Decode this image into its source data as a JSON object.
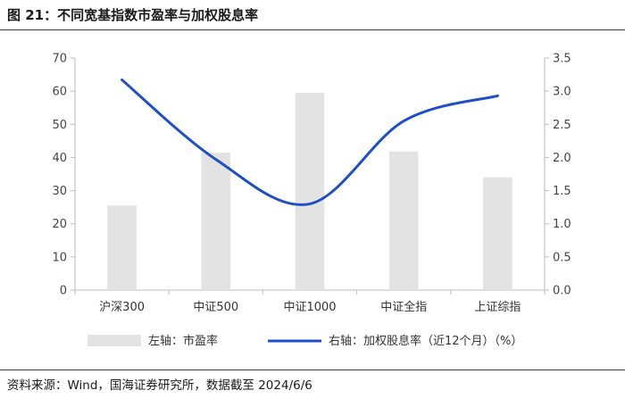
{
  "figure": {
    "title": "图 21：不同宽基指数市盈率与加权股息率",
    "source": "资料来源：Wind，国海证券研究所，数据截至 2024/6/6"
  },
  "chart_data": {
    "type": "bar+line",
    "categories": [
      "沪深300",
      "中证500",
      "中证1000",
      "中证全指",
      "上证综指"
    ],
    "series": [
      {
        "name": "左轴：市盈率",
        "type": "bar",
        "axis": "left",
        "color": "#e3e3e3",
        "values": [
          25.5,
          41.5,
          59.5,
          41.8,
          34.0
        ]
      },
      {
        "name": "右轴：加权股息率（近12个月）（%）",
        "type": "line",
        "axis": "right",
        "color": "#1f4fc6",
        "values": [
          3.17,
          1.97,
          1.3,
          2.55,
          2.93
        ]
      }
    ],
    "y_left": {
      "min": 0,
      "max": 70,
      "step": 10,
      "ticks": [
        "0",
        "10",
        "20",
        "30",
        "40",
        "50",
        "60",
        "70"
      ]
    },
    "y_right": {
      "min": 0,
      "max": 3.5,
      "step": 0.5,
      "ticks": [
        "0.0",
        "0.5",
        "1.0",
        "1.5",
        "2.0",
        "2.5",
        "3.0",
        "3.5"
      ]
    },
    "grid": false,
    "legend_position": "bottom"
  }
}
